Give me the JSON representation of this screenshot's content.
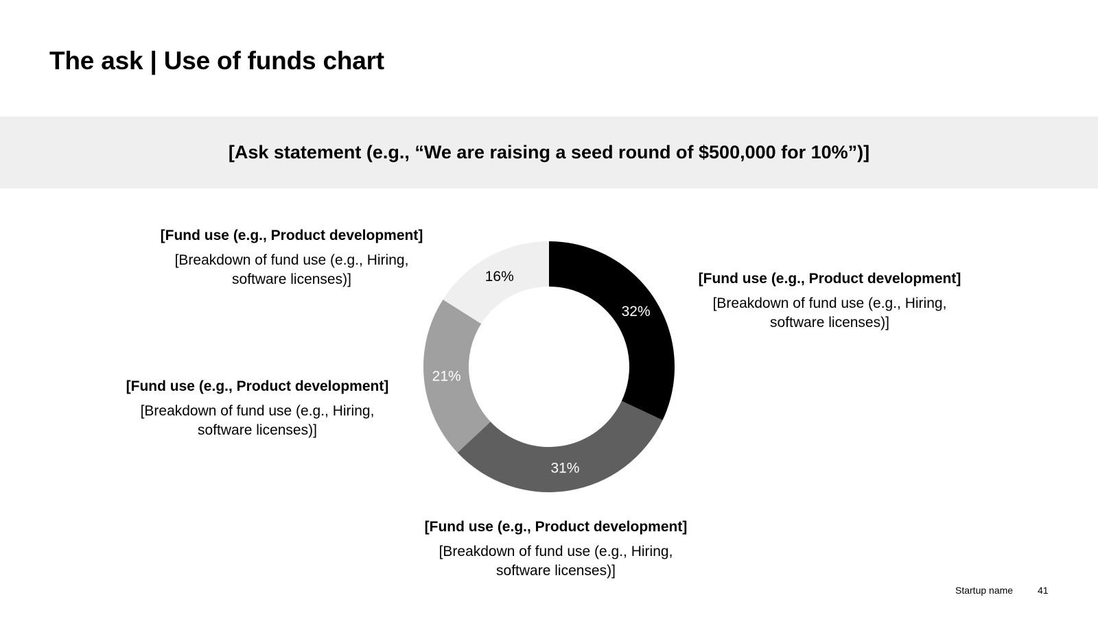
{
  "title": "The ask | Use of funds chart",
  "ask_statement": "[Ask statement (e.g., “We are raising a seed round of $500,000 for 10%”)]",
  "callouts": [
    {
      "title": "[Fund use (e.g., Product development]",
      "line1": "[Breakdown of fund use (e.g., Hiring,",
      "line2": "software licenses)]"
    },
    {
      "title": "[Fund use (e.g., Product development]",
      "line1": "[Breakdown of fund use (e.g., Hiring,",
      "line2": "software licenses)]"
    },
    {
      "title": "[Fund use (e.g., Product development]",
      "line1": "[Breakdown of fund use (e.g., Hiring,",
      "line2": "software licenses)]"
    },
    {
      "title": "[Fund use (e.g., Product development]",
      "line1": "[Breakdown of fund use (e.g., Hiring,",
      "line2": "software licenses)]"
    }
  ],
  "chart_data": {
    "type": "pie",
    "donut": true,
    "title": "",
    "slices": [
      {
        "value": 32,
        "label": "32%",
        "color": "#000000",
        "label_color": "#ffffff"
      },
      {
        "value": 31,
        "label": "31%",
        "color": "#5f5f5f",
        "label_color": "#ffffff"
      },
      {
        "value": 21,
        "label": "21%",
        "color": "#a0a0a0",
        "label_color": "#ffffff"
      },
      {
        "value": 16,
        "label": "16%",
        "color": "#efefef",
        "label_color": "#000000"
      }
    ],
    "start_angle": "12 o'clock",
    "direction": "clockwise"
  },
  "footer": {
    "startup_name": "Startup name",
    "page_number": "41"
  }
}
